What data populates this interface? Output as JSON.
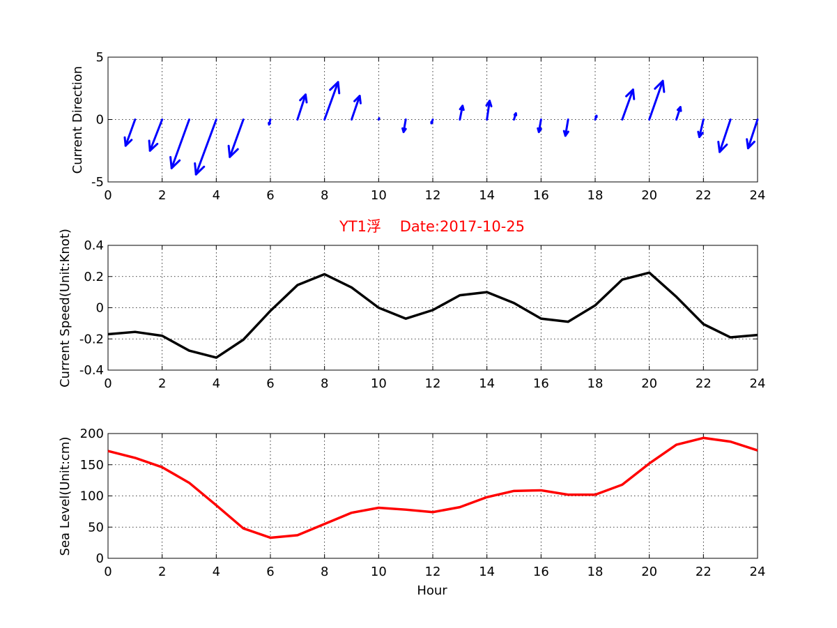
{
  "figure_title": "YT1浮    Date:2017-10-25",
  "colors": {
    "arrows": "#0000ff",
    "speed": "#000000",
    "sea_level": "#ff0000",
    "title": "#ff0000"
  },
  "chart_data": [
    {
      "type": "quiver",
      "ylabel": "Current Direction",
      "xlim": [
        0,
        24
      ],
      "ylim": [
        -5,
        5
      ],
      "xticks": [
        "0",
        "2",
        "4",
        "6",
        "8",
        "10",
        "12",
        "14",
        "16",
        "18",
        "20",
        "22",
        "24"
      ],
      "yticks": [
        "5",
        "0",
        "-5"
      ],
      "grid": true,
      "x": [
        1,
        2,
        3,
        4,
        5,
        6,
        7,
        8,
        9,
        10,
        11,
        12,
        13,
        14,
        15,
        16,
        17,
        18,
        19,
        20,
        21,
        22,
        23,
        24
      ],
      "u": [
        -0.35,
        -0.45,
        -0.65,
        -0.75,
        -0.5,
        -0.05,
        0.3,
        0.5,
        0.3,
        0.02,
        -0.08,
        -0.05,
        0.1,
        0.1,
        0.07,
        -0.08,
        -0.1,
        0.05,
        0.4,
        0.5,
        0.15,
        -0.15,
        -0.4,
        -0.35
      ],
      "v": [
        -2.1,
        -2.5,
        -3.9,
        -4.4,
        -3.0,
        -0.4,
        2.0,
        3.0,
        1.9,
        0.1,
        -1.0,
        -0.3,
        1.1,
        1.5,
        0.5,
        -1.0,
        -1.3,
        0.3,
        2.4,
        3.1,
        1.0,
        -1.4,
        -2.6,
        -2.3
      ]
    },
    {
      "type": "line",
      "ylabel": "Current Speed(Unit:Knot)",
      "xlim": [
        0,
        24
      ],
      "ylim": [
        -0.4,
        0.4
      ],
      "xticks": [
        "0",
        "2",
        "4",
        "6",
        "8",
        "10",
        "12",
        "14",
        "16",
        "18",
        "20",
        "22",
        "24"
      ],
      "yticks": [
        "0.4",
        "0.2",
        "0",
        "-0.2",
        "-0.4"
      ],
      "grid": true,
      "x": [
        0,
        1,
        2,
        3,
        4,
        5,
        6,
        7,
        8,
        9,
        10,
        11,
        12,
        13,
        14,
        15,
        16,
        17,
        18,
        19,
        20,
        21,
        22,
        23,
        24
      ],
      "y": [
        -0.17,
        -0.155,
        -0.18,
        -0.275,
        -0.32,
        -0.205,
        -0.02,
        0.145,
        0.215,
        0.13,
        0.0,
        -0.07,
        -0.015,
        0.08,
        0.1,
        0.03,
        -0.07,
        -0.09,
        0.015,
        0.18,
        0.225,
        0.07,
        -0.105,
        -0.19,
        -0.175
      ]
    },
    {
      "type": "line",
      "ylabel": "Sea Level(Unit:cm)",
      "xlabel": "Hour",
      "xlim": [
        0,
        24
      ],
      "ylim": [
        0,
        200
      ],
      "xticks": [
        "0",
        "2",
        "4",
        "6",
        "8",
        "10",
        "12",
        "14",
        "16",
        "18",
        "20",
        "22",
        "24"
      ],
      "yticks": [
        "200",
        "150",
        "100",
        "50",
        "0"
      ],
      "grid": true,
      "x": [
        0,
        1,
        2,
        3,
        4,
        5,
        6,
        7,
        8,
        9,
        10,
        11,
        12,
        13,
        14,
        15,
        16,
        17,
        18,
        19,
        20,
        21,
        22,
        23,
        24
      ],
      "y": [
        172,
        161,
        146,
        121,
        85,
        48,
        33,
        37,
        55,
        73,
        81,
        78,
        74,
        82,
        98,
        108,
        109,
        102,
        102,
        118,
        152,
        182,
        193,
        187,
        173
      ]
    }
  ]
}
